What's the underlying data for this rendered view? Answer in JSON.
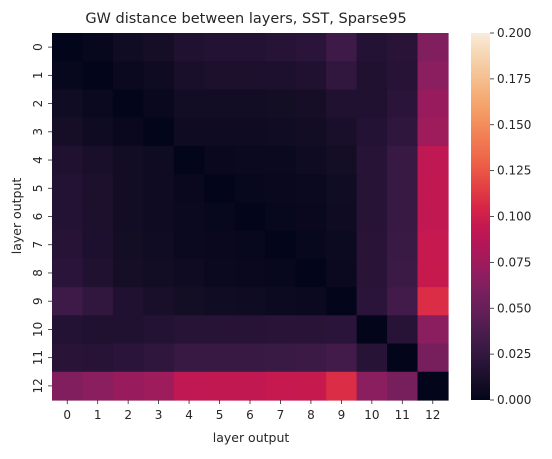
{
  "chart_data": {
    "type": "heatmap",
    "title": "GW distance between layers, SST, Sparse95",
    "xlabel": "layer output",
    "ylabel": "layer output",
    "x_categories": [
      "0",
      "1",
      "2",
      "3",
      "4",
      "5",
      "6",
      "7",
      "8",
      "9",
      "10",
      "11",
      "12"
    ],
    "y_categories": [
      "0",
      "1",
      "2",
      "3",
      "4",
      "5",
      "6",
      "7",
      "8",
      "9",
      "10",
      "11",
      "12"
    ],
    "values": [
      [
        0.0,
        0.002,
        0.007,
        0.01,
        0.016,
        0.017,
        0.017,
        0.019,
        0.021,
        0.03,
        0.017,
        0.02,
        0.062
      ],
      [
        0.002,
        0.0,
        0.004,
        0.006,
        0.012,
        0.013,
        0.013,
        0.014,
        0.016,
        0.024,
        0.015,
        0.019,
        0.066
      ],
      [
        0.007,
        0.004,
        0.0,
        0.003,
        0.008,
        0.008,
        0.008,
        0.009,
        0.01,
        0.016,
        0.016,
        0.021,
        0.072
      ],
      [
        0.01,
        0.006,
        0.003,
        0.0,
        0.006,
        0.006,
        0.006,
        0.007,
        0.008,
        0.012,
        0.017,
        0.023,
        0.075
      ],
      [
        0.016,
        0.012,
        0.008,
        0.006,
        0.0,
        0.003,
        0.004,
        0.004,
        0.006,
        0.009,
        0.019,
        0.027,
        0.092
      ],
      [
        0.017,
        0.013,
        0.008,
        0.006,
        0.003,
        0.0,
        0.002,
        0.003,
        0.004,
        0.007,
        0.019,
        0.027,
        0.093
      ],
      [
        0.017,
        0.013,
        0.008,
        0.006,
        0.004,
        0.002,
        0.0,
        0.002,
        0.003,
        0.006,
        0.019,
        0.027,
        0.093
      ],
      [
        0.019,
        0.014,
        0.009,
        0.007,
        0.004,
        0.003,
        0.002,
        0.0,
        0.002,
        0.005,
        0.02,
        0.028,
        0.095
      ],
      [
        0.021,
        0.016,
        0.01,
        0.008,
        0.006,
        0.004,
        0.003,
        0.002,
        0.0,
        0.004,
        0.02,
        0.029,
        0.096
      ],
      [
        0.03,
        0.024,
        0.016,
        0.012,
        0.009,
        0.007,
        0.006,
        0.005,
        0.004,
        0.0,
        0.021,
        0.033,
        0.108
      ],
      [
        0.017,
        0.015,
        0.016,
        0.017,
        0.019,
        0.019,
        0.019,
        0.02,
        0.02,
        0.021,
        0.0,
        0.019,
        0.066
      ],
      [
        0.02,
        0.019,
        0.021,
        0.023,
        0.027,
        0.027,
        0.027,
        0.028,
        0.029,
        0.033,
        0.019,
        0.0,
        0.058
      ],
      [
        0.062,
        0.066,
        0.072,
        0.075,
        0.092,
        0.093,
        0.093,
        0.095,
        0.096,
        0.108,
        0.066,
        0.058,
        0.0
      ]
    ],
    "colorbar": {
      "min": 0.0,
      "max": 0.2,
      "tick_labels": [
        "0.000",
        "0.025",
        "0.050",
        "0.075",
        "0.100",
        "0.125",
        "0.150",
        "0.175",
        "0.200"
      ],
      "ticks": [
        0.0,
        0.025,
        0.05,
        0.075,
        0.1,
        0.125,
        0.15,
        0.175,
        0.2
      ],
      "colormap": "rocket",
      "stops": [
        "#03051a",
        "#150e26",
        "#271336",
        "#3a1a45",
        "#4d1d4f",
        "#621f58",
        "#751f5d",
        "#8c1e5f",
        "#a11a5b",
        "#b51657",
        "#c51950",
        "#d72546",
        "#e23c44",
        "#ea5444",
        "#ef6a4c",
        "#f27d54",
        "#f4915f",
        "#f5a56e",
        "#f5b885",
        "#f6c99f",
        "#f7dab9",
        "#faebdd"
      ]
    },
    "grid": false,
    "legend": "colorbar-right"
  }
}
